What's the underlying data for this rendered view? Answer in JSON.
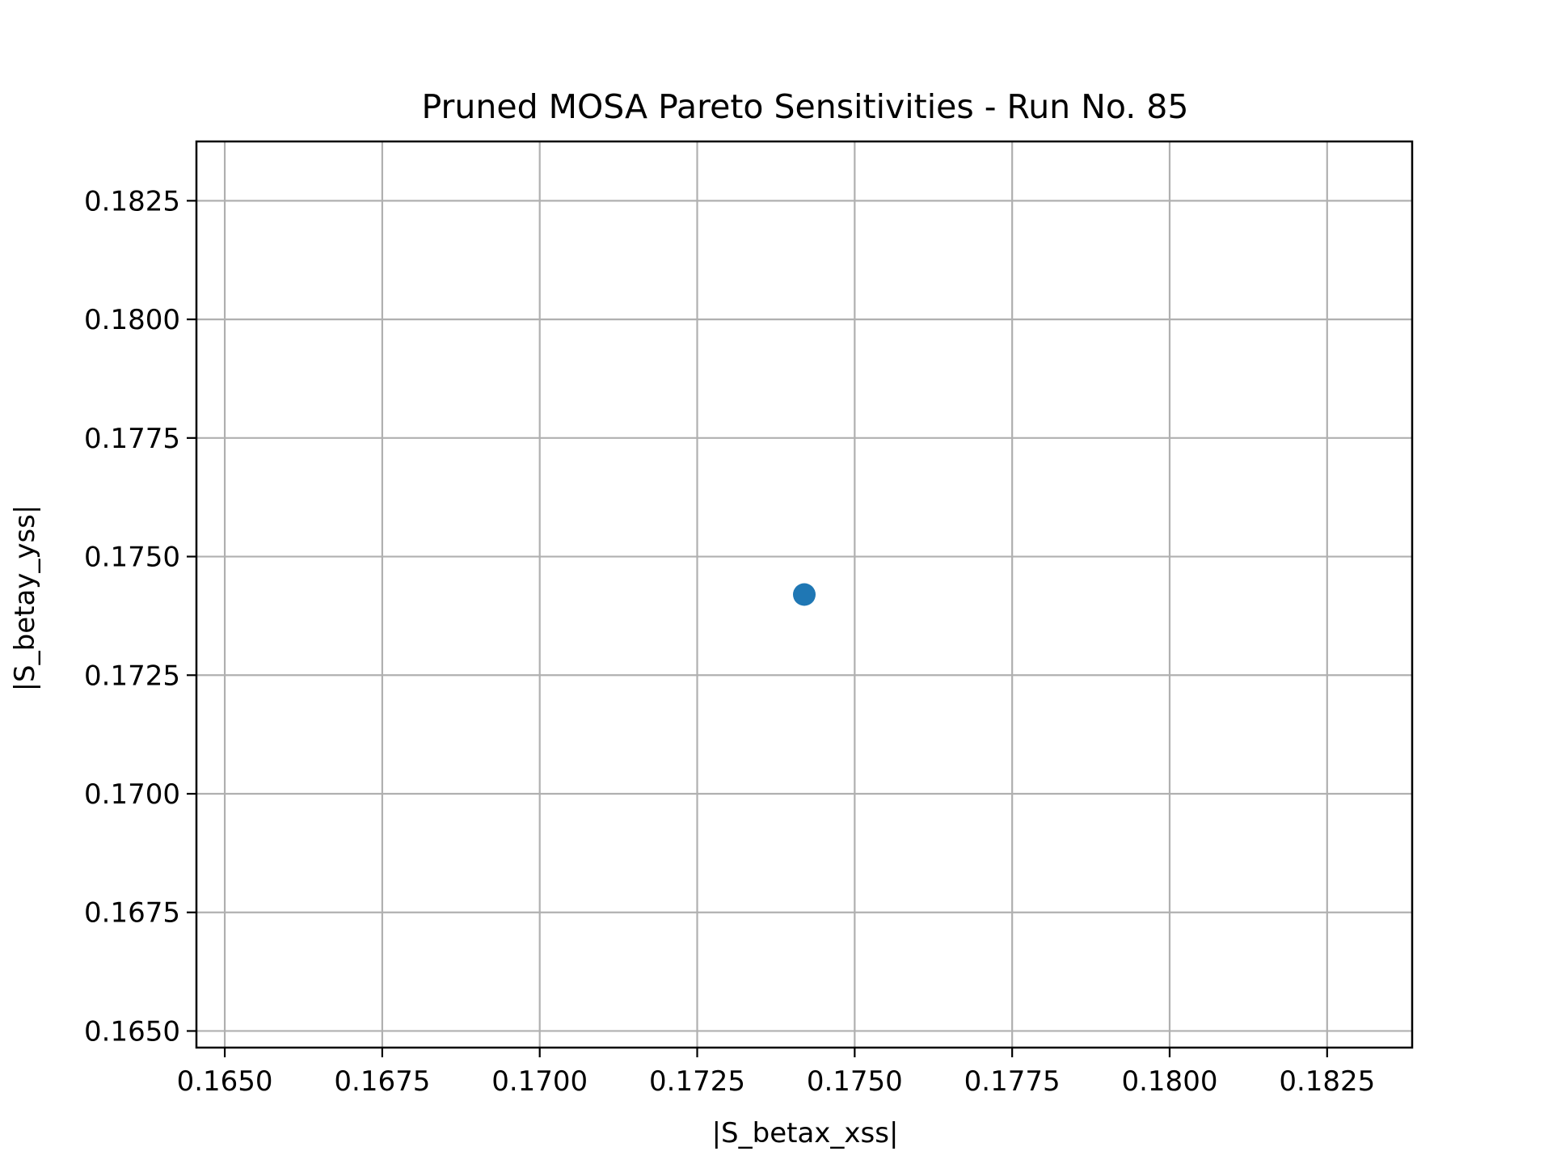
{
  "chart_data": {
    "type": "scatter",
    "title": "Pruned MOSA Pareto Sensitivities - Run No. 85",
    "xlabel": "|S_betax_xss|",
    "ylabel": "|S_betay_yss|",
    "xlim": [
      0.16455,
      0.18385
    ],
    "ylim": [
      0.16465,
      0.18375
    ],
    "x_ticks": [
      0.165,
      0.1675,
      0.17,
      0.1725,
      0.175,
      0.1775,
      0.18,
      0.1825
    ],
    "x_tick_labels": [
      "0.1650",
      "0.1675",
      "0.1700",
      "0.1725",
      "0.1750",
      "0.1775",
      "0.1800",
      "0.1825"
    ],
    "y_ticks": [
      0.165,
      0.1675,
      0.17,
      0.1725,
      0.175,
      0.1775,
      0.18,
      0.1825
    ],
    "y_tick_labels": [
      "0.1650",
      "0.1675",
      "0.1700",
      "0.1725",
      "0.1750",
      "0.1775",
      "0.1800",
      "0.1825"
    ],
    "grid": true,
    "series": [
      {
        "color": "#1f77b4",
        "points": [
          {
            "x": 0.1742,
            "y": 0.1742
          }
        ]
      }
    ]
  }
}
